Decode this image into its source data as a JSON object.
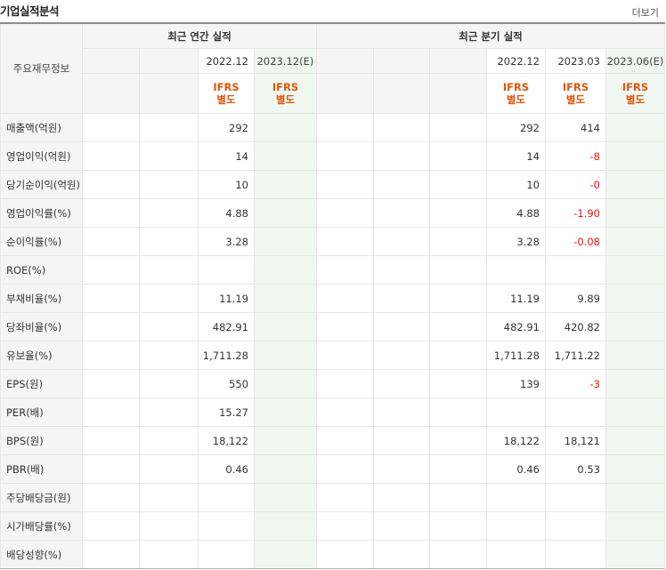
{
  "title": "기업실적분석",
  "more_label": "더보기",
  "group_headers": {
    "annual": "최근 연간 실적",
    "quarter": "최근 분기 실적"
  },
  "row_header_label": "주요재무정보",
  "annual_periods": [
    "",
    "",
    "2022.12",
    "2023.12(E)"
  ],
  "quarter_periods": [
    "",
    "",
    "",
    "2022.12",
    "2023.03",
    "2023.06(E)"
  ],
  "annual_accounting": [
    "",
    "",
    "IFRS\n별도",
    "IFRS\n별도"
  ],
  "quarter_accounting": [
    "",
    "",
    "",
    "IFRS\n별도",
    "IFRS\n별도",
    "IFRS\n별도"
  ],
  "estimate_color": "#f0f7f0",
  "accent_color": "#e0540b",
  "negative_color": "#e4120f",
  "rows": [
    {
      "label": "매출액(억원)",
      "annual": [
        "",
        "",
        "292",
        ""
      ],
      "quarter": [
        "",
        "",
        "",
        "292",
        "414",
        ""
      ]
    },
    {
      "label": "영업이익(억원)",
      "annual": [
        "",
        "",
        "14",
        ""
      ],
      "quarter": [
        "",
        "",
        "",
        "14",
        "-8",
        ""
      ]
    },
    {
      "label": "당기순이익(억원)",
      "annual": [
        "",
        "",
        "10",
        ""
      ],
      "quarter": [
        "",
        "",
        "",
        "10",
        "-0",
        ""
      ]
    },
    {
      "label": "영업이익률(%)",
      "annual": [
        "",
        "",
        "4.88",
        ""
      ],
      "quarter": [
        "",
        "",
        "",
        "4.88",
        "-1.90",
        ""
      ]
    },
    {
      "label": "순이익률(%)",
      "annual": [
        "",
        "",
        "3.28",
        ""
      ],
      "quarter": [
        "",
        "",
        "",
        "3.28",
        "-0.08",
        ""
      ]
    },
    {
      "label": "ROE(%)",
      "annual": [
        "",
        "",
        "",
        ""
      ],
      "quarter": [
        "",
        "",
        "",
        "",
        "",
        ""
      ]
    },
    {
      "label": "부채비율(%)",
      "annual": [
        "",
        "",
        "11.19",
        ""
      ],
      "quarter": [
        "",
        "",
        "",
        "11.19",
        "9.89",
        ""
      ]
    },
    {
      "label": "당좌비율(%)",
      "annual": [
        "",
        "",
        "482.91",
        ""
      ],
      "quarter": [
        "",
        "",
        "",
        "482.91",
        "420.82",
        ""
      ]
    },
    {
      "label": "유보율(%)",
      "annual": [
        "",
        "",
        "1,711.28",
        ""
      ],
      "quarter": [
        "",
        "",
        "",
        "1,711.28",
        "1,711.22",
        ""
      ]
    },
    {
      "label": "EPS(원)",
      "annual": [
        "",
        "",
        "550",
        ""
      ],
      "quarter": [
        "",
        "",
        "",
        "139",
        "-3",
        ""
      ]
    },
    {
      "label": "PER(배)",
      "annual": [
        "",
        "",
        "15.27",
        ""
      ],
      "quarter": [
        "",
        "",
        "",
        "",
        "",
        ""
      ]
    },
    {
      "label": "BPS(원)",
      "annual": [
        "",
        "",
        "18,122",
        ""
      ],
      "quarter": [
        "",
        "",
        "",
        "18,122",
        "18,121",
        ""
      ]
    },
    {
      "label": "PBR(배)",
      "annual": [
        "",
        "",
        "0.46",
        ""
      ],
      "quarter": [
        "",
        "",
        "",
        "0.46",
        "0.53",
        ""
      ]
    },
    {
      "label": "주당배당금(원)",
      "annual": [
        "",
        "",
        "",
        ""
      ],
      "quarter": [
        "",
        "",
        "",
        "",
        "",
        ""
      ]
    },
    {
      "label": "시가배당률(%)",
      "annual": [
        "",
        "",
        "",
        ""
      ],
      "quarter": [
        "",
        "",
        "",
        "",
        "",
        ""
      ]
    },
    {
      "label": "배당성향(%)",
      "annual": [
        "",
        "",
        "",
        ""
      ],
      "quarter": [
        "",
        "",
        "",
        "",
        "",
        ""
      ]
    }
  ]
}
